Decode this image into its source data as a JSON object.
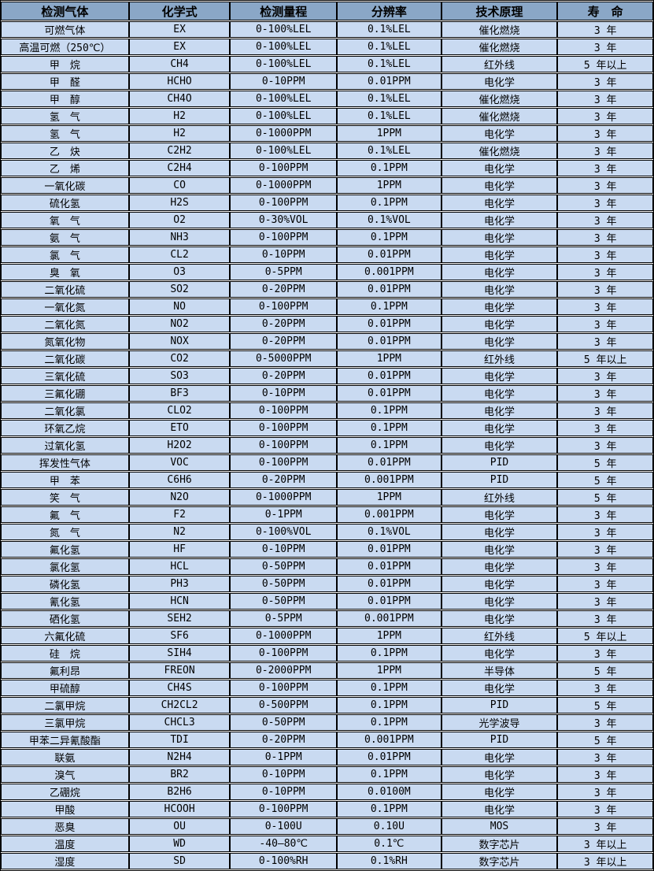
{
  "colors": {
    "header_bg": "#8AA7C7",
    "row_bg": "#C9DAF1",
    "border": "#000000",
    "text": "#000000",
    "row_gap": "#FFFFFF"
  },
  "table": {
    "columns": [
      "检测气体",
      "化学式",
      "检测量程",
      "分辨率",
      "技术原理",
      "寿　命"
    ],
    "rows": [
      [
        "可燃气体",
        "EX",
        "0-100%LEL",
        "0.1%LEL",
        "催化燃烧",
        "3 年"
      ],
      [
        "高温可燃（250℃）",
        "EX",
        "0-100%LEL",
        "0.1%LEL",
        "催化燃烧",
        "3 年"
      ],
      [
        "甲　烷",
        "CH4",
        "0-100%LEL",
        "0.1%LEL",
        "红外线",
        "5 年以上"
      ],
      [
        "甲　醛",
        "HCHO",
        "0-10PPM",
        "0.01PPM",
        "电化学",
        "3 年"
      ],
      [
        "甲　醇",
        "CH4O",
        "0-100%LEL",
        "0.1%LEL",
        "催化燃烧",
        "3 年"
      ],
      [
        "氢　气",
        "H2",
        "0-100%LEL",
        "0.1%LEL",
        "催化燃烧",
        "3 年"
      ],
      [
        "氢　气",
        "H2",
        "0-1000PPM",
        "1PPM",
        "电化学",
        "3 年"
      ],
      [
        "乙　炔",
        "C2H2",
        "0-100%LEL",
        "0.1%LEL",
        "催化燃烧",
        "3 年"
      ],
      [
        "乙　烯",
        "C2H4",
        "0-100PPM",
        "0.1PPM",
        "电化学",
        "3 年"
      ],
      [
        "一氧化碳",
        "CO",
        "0-1000PPM",
        "1PPM",
        "电化学",
        "3 年"
      ],
      [
        "硫化氢",
        "H2S",
        "0-100PPM",
        "0.1PPM",
        "电化学",
        "3 年"
      ],
      [
        "氧　气",
        "O2",
        "0-30%VOL",
        "0.1%VOL",
        "电化学",
        "3 年"
      ],
      [
        "氨　气",
        "NH3",
        "0-100PPM",
        "0.1PPM",
        "电化学",
        "3 年"
      ],
      [
        "氯　气",
        "CL2",
        "0-10PPM",
        "0.01PPM",
        "电化学",
        "3 年"
      ],
      [
        "臭　氧",
        "O3",
        "0-5PPM",
        "0.001PPM",
        "电化学",
        "3 年"
      ],
      [
        "二氧化硫",
        "SO2",
        "0-20PPM",
        "0.01PPM",
        "电化学",
        "3 年"
      ],
      [
        "一氧化氮",
        "NO",
        "0-100PPM",
        "0.1PPM",
        "电化学",
        "3 年"
      ],
      [
        "二氧化氮",
        "NO2",
        "0-20PPM",
        "0.01PPM",
        "电化学",
        "3 年"
      ],
      [
        "氮氧化物",
        "NOX",
        "0-20PPM",
        "0.01PPM",
        "电化学",
        "3 年"
      ],
      [
        "二氧化碳",
        "CO2",
        "0-5000PPM",
        "1PPM",
        "红外线",
        "5 年以上"
      ],
      [
        "三氧化硫",
        "SO3",
        "0-20PPM",
        "0.01PPM",
        "电化学",
        "3 年"
      ],
      [
        "三氟化硼",
        "BF3",
        "0-10PPM",
        "0.01PPM",
        "电化学",
        "3 年"
      ],
      [
        "二氧化氯",
        "CLO2",
        "0-100PPM",
        "0.1PPM",
        "电化学",
        "3 年"
      ],
      [
        "环氧乙烷",
        "ETO",
        "0-100PPM",
        "0.1PPM",
        "电化学",
        "3 年"
      ],
      [
        "过氧化氢",
        "H2O2",
        "0-100PPM",
        "0.1PPM",
        "电化学",
        "3 年"
      ],
      [
        "挥发性气体",
        "VOC",
        "0-100PPM",
        "0.01PPM",
        "PID",
        "5 年"
      ],
      [
        "甲　苯",
        "C6H6",
        "0-20PPM",
        "0.001PPM",
        "PID",
        "5 年"
      ],
      [
        "笑　气",
        "N2O",
        "0-1000PPM",
        "1PPM",
        "红外线",
        "5 年"
      ],
      [
        "氟　气",
        "F2",
        "0-1PPM",
        "0.001PPM",
        "电化学",
        "3 年"
      ],
      [
        "氮　气",
        "N2",
        "0-100%VOL",
        "0.1%VOL",
        "电化学",
        "3 年"
      ],
      [
        "氟化氢",
        "HF",
        "0-10PPM",
        "0.01PPM",
        "电化学",
        "3 年"
      ],
      [
        "氯化氢",
        "HCL",
        "0-50PPM",
        "0.01PPM",
        "电化学",
        "3 年"
      ],
      [
        "磷化氢",
        "PH3",
        "0-50PPM",
        "0.01PPM",
        "电化学",
        "3 年"
      ],
      [
        "氰化氢",
        "HCN",
        "0-50PPM",
        "0.01PPM",
        "电化学",
        "3 年"
      ],
      [
        "硒化氢",
        "SEH2",
        "0-5PPM",
        "0.001PPM",
        "电化学",
        "3 年"
      ],
      [
        "六氟化硫",
        "SF6",
        "0-1000PPM",
        "1PPM",
        "红外线",
        "5 年以上"
      ],
      [
        "硅　烷",
        "SIH4",
        "0-100PPM",
        "0.1PPM",
        "电化学",
        "3 年"
      ],
      [
        "氟利昂",
        "FREON",
        "0-2000PPM",
        "1PPM",
        "半导体",
        "5 年"
      ],
      [
        "甲硫醇",
        "CH4S",
        "0-100PPM",
        "0.1PPM",
        "电化学",
        "3 年"
      ],
      [
        "二氯甲烷",
        "CH2CL2",
        "0-500PPM",
        "0.1PPM",
        "PID",
        "5 年"
      ],
      [
        "三氯甲烷",
        "CHCL3",
        "0-50PPM",
        "0.1PPM",
        "光学波导",
        "3 年"
      ],
      [
        "甲苯二异氰酸酯",
        "TDI",
        "0-20PPM",
        "0.001PPM",
        "PID",
        "5 年"
      ],
      [
        "联氨",
        "N2H4",
        "0-1PPM",
        "0.01PPM",
        "电化学",
        "3 年"
      ],
      [
        "溴气",
        "BR2",
        "0-10PPM",
        "0.1PPM",
        "电化学",
        "3 年"
      ],
      [
        "乙硼烷",
        "B2H6",
        "0-10PPM",
        "0.0100M",
        "电化学",
        "3 年"
      ],
      [
        "甲酸",
        "HCOOH",
        "0-100PPM",
        "0.1PPM",
        "电化学",
        "3 年"
      ],
      [
        "恶臭",
        "OU",
        "0-100U",
        "0.10U",
        "MOS",
        "3 年"
      ],
      [
        "温度",
        "WD",
        "-40—80℃",
        "0.1℃",
        "数字芯片",
        "3 年以上"
      ],
      [
        "湿度",
        "SD",
        "0-100%RH",
        "0.1%RH",
        "数字芯片",
        "3 年以上"
      ]
    ]
  }
}
